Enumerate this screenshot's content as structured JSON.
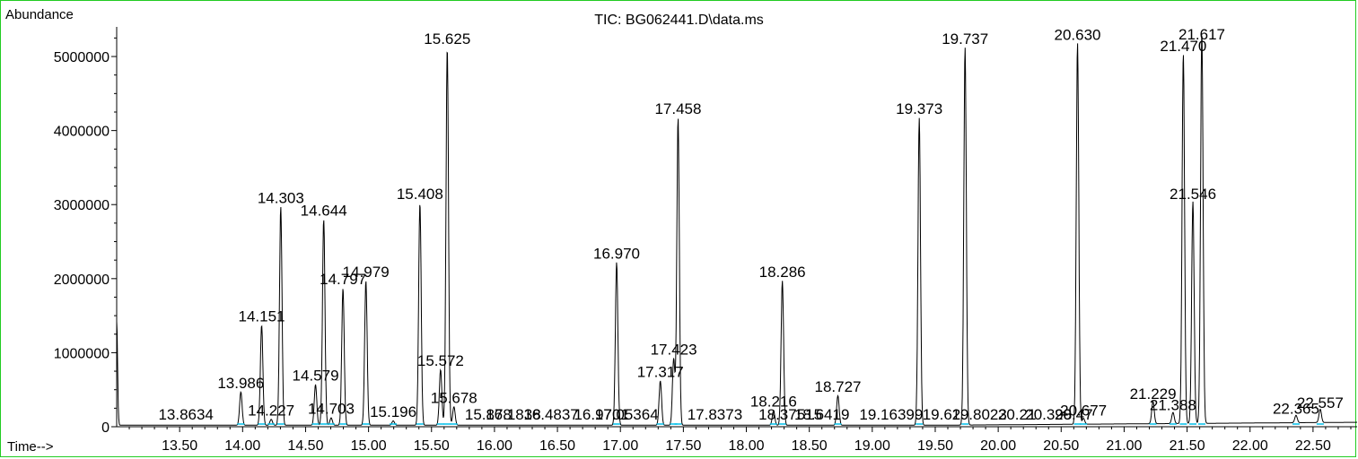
{
  "chart_data": {
    "type": "line",
    "title": "TIC: BG062441.D\\data.ms",
    "ylabel": "Abundance",
    "xlabel": "Time-->",
    "xlim": [
      13.0,
      22.85
    ],
    "ylim": [
      0,
      5400000
    ],
    "x_ticks": [
      "13.50",
      "14.00",
      "14.50",
      "15.00",
      "15.50",
      "16.00",
      "16.50",
      "17.00",
      "17.50",
      "18.00",
      "18.50",
      "19.00",
      "19.50",
      "20.00",
      "20.50",
      "21.00",
      "21.50",
      "22.00",
      "22.50"
    ],
    "y_ticks": [
      "0",
      "1000000",
      "2000000",
      "3000000",
      "4000000",
      "5000000"
    ],
    "grid": false,
    "colors": {
      "trace": "#000000",
      "integration": "#00bfe8",
      "frame": "#22cc22"
    },
    "peaks": [
      {
        "rt": 13.986,
        "height": 450000,
        "label": "13.986"
      },
      {
        "rt": 14.151,
        "height": 1350000,
        "label": "14.151"
      },
      {
        "rt": 14.227,
        "height": 80000,
        "label": "14.227"
      },
      {
        "rt": 14.303,
        "height": 2950000,
        "label": "14.303"
      },
      {
        "rt": 14.579,
        "height": 550000,
        "label": "14.579"
      },
      {
        "rt": 14.644,
        "height": 2780000,
        "label": "14.644"
      },
      {
        "rt": 14.703,
        "height": 100000,
        "label": "14.703"
      },
      {
        "rt": 14.797,
        "height": 1850000,
        "label": "14.797"
      },
      {
        "rt": 14.979,
        "height": 1950000,
        "label": "14.979"
      },
      {
        "rt": 15.196,
        "height": 60000,
        "label": "15.196"
      },
      {
        "rt": 15.408,
        "height": 3000000,
        "label": "15.408"
      },
      {
        "rt": 15.572,
        "height": 750000,
        "label": "15.572"
      },
      {
        "rt": 15.625,
        "height": 5100000,
        "label": "15.625"
      },
      {
        "rt": 15.678,
        "height": 250000,
        "label": "15.678"
      },
      {
        "rt": 16.97,
        "height": 2200000,
        "label": "16.970"
      },
      {
        "rt": 17.317,
        "height": 600000,
        "label": "17.317"
      },
      {
        "rt": 17.423,
        "height": 900000,
        "label": "17.423"
      },
      {
        "rt": 17.458,
        "height": 4150000,
        "label": "17.458"
      },
      {
        "rt": 18.216,
        "height": 200000,
        "label": "18.216"
      },
      {
        "rt": 18.286,
        "height": 1950000,
        "label": "18.286"
      },
      {
        "rt": 18.727,
        "height": 400000,
        "label": "18.727"
      },
      {
        "rt": 19.373,
        "height": 4150000,
        "label": "19.373"
      },
      {
        "rt": 19.737,
        "height": 5100000,
        "label": "19.737"
      },
      {
        "rt": 20.63,
        "height": 5150000,
        "label": "20.630"
      },
      {
        "rt": 20.677,
        "height": 80000,
        "label": "20.677"
      },
      {
        "rt": 21.229,
        "height": 300000,
        "label": "21.229"
      },
      {
        "rt": 21.388,
        "height": 150000,
        "label": "21.388"
      },
      {
        "rt": 21.47,
        "height": 5000000,
        "label": "21.470"
      },
      {
        "rt": 21.546,
        "height": 3000000,
        "label": "21.546"
      },
      {
        "rt": 21.617,
        "height": 5300000,
        "label": "21.617"
      },
      {
        "rt": 22.365,
        "height": 100000,
        "label": "22.365"
      },
      {
        "rt": 22.557,
        "height": 180000,
        "label": "22.557"
      }
    ],
    "baseline_label_texts": [
      "13.8634",
      "15.878",
      "16.1838",
      "16.4837",
      "16.9701",
      "17.05364",
      "17.8373",
      "18.37515",
      "18.6419",
      "19.16399",
      "19.62",
      "19.8023",
      "20.21",
      "20.398",
      "20.47"
    ]
  }
}
